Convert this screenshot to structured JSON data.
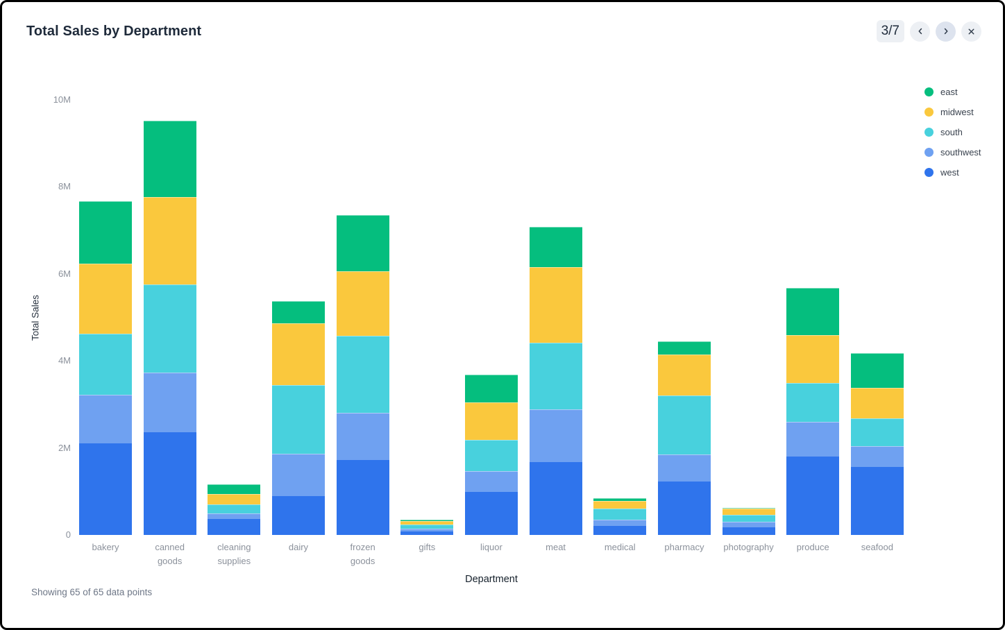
{
  "header": {
    "title": "Total Sales by Department"
  },
  "pagination": {
    "current_label": "3/7"
  },
  "icons": {
    "prev": "chevron-left-icon",
    "next": "chevron-right-icon",
    "close": "close-icon"
  },
  "footer": {
    "status": "Showing 65 of 65 data points"
  },
  "chart_data": {
    "type": "bar",
    "stacked": true,
    "title": "Total Sales by Department",
    "xlabel": "Department",
    "ylabel": "Total Sales",
    "ylim": [
      0,
      10000000
    ],
    "grid": false,
    "legend_position": "right",
    "yticks": [
      {
        "value": 0,
        "label": "0"
      },
      {
        "value": 2000000,
        "label": "2M"
      },
      {
        "value": 4000000,
        "label": "4M"
      },
      {
        "value": 6000000,
        "label": "6M"
      },
      {
        "value": 8000000,
        "label": "8M"
      },
      {
        "value": 10000000,
        "label": "10M"
      }
    ],
    "categories": [
      "bakery",
      "canned goods",
      "cleaning supplies",
      "dairy",
      "frozen goods",
      "gifts",
      "liquor",
      "meat",
      "medical",
      "pharmacy",
      "photography",
      "produce",
      "seafood"
    ],
    "category_labels": [
      "bakery",
      "canned\ngoods",
      "cleaning\nsupplies",
      "dairy",
      "frozen\ngoods",
      "gifts",
      "liquor",
      "meat",
      "medical",
      "pharmacy",
      "photography",
      "produce",
      "seafood"
    ],
    "stack_order_bottom_to_top": [
      "west",
      "southwest",
      "south",
      "midwest",
      "east"
    ],
    "series": [
      {
        "name": "east",
        "color": "#05be7e",
        "values": [
          1440000,
          1750000,
          230000,
          510000,
          1290000,
          30000,
          630000,
          920000,
          60000,
          300000,
          30000,
          1090000,
          800000
        ]
      },
      {
        "name": "midwest",
        "color": "#fac83d",
        "values": [
          1600000,
          2010000,
          240000,
          1420000,
          1480000,
          80000,
          870000,
          1740000,
          170000,
          940000,
          130000,
          1100000,
          700000
        ]
      },
      {
        "name": "south",
        "color": "#48d1dd",
        "values": [
          1410000,
          2030000,
          200000,
          1570000,
          1770000,
          100000,
          710000,
          1530000,
          260000,
          1360000,
          170000,
          890000,
          640000
        ]
      },
      {
        "name": "southwest",
        "color": "#6fa1f1",
        "values": [
          1120000,
          1370000,
          140000,
          980000,
          1090000,
          60000,
          480000,
          1220000,
          150000,
          620000,
          120000,
          800000,
          480000
        ]
      },
      {
        "name": "west",
        "color": "#2f74ec",
        "values": [
          2100000,
          2360000,
          360000,
          890000,
          1720000,
          80000,
          990000,
          1670000,
          200000,
          1230000,
          180000,
          1800000,
          1560000
        ]
      }
    ]
  }
}
